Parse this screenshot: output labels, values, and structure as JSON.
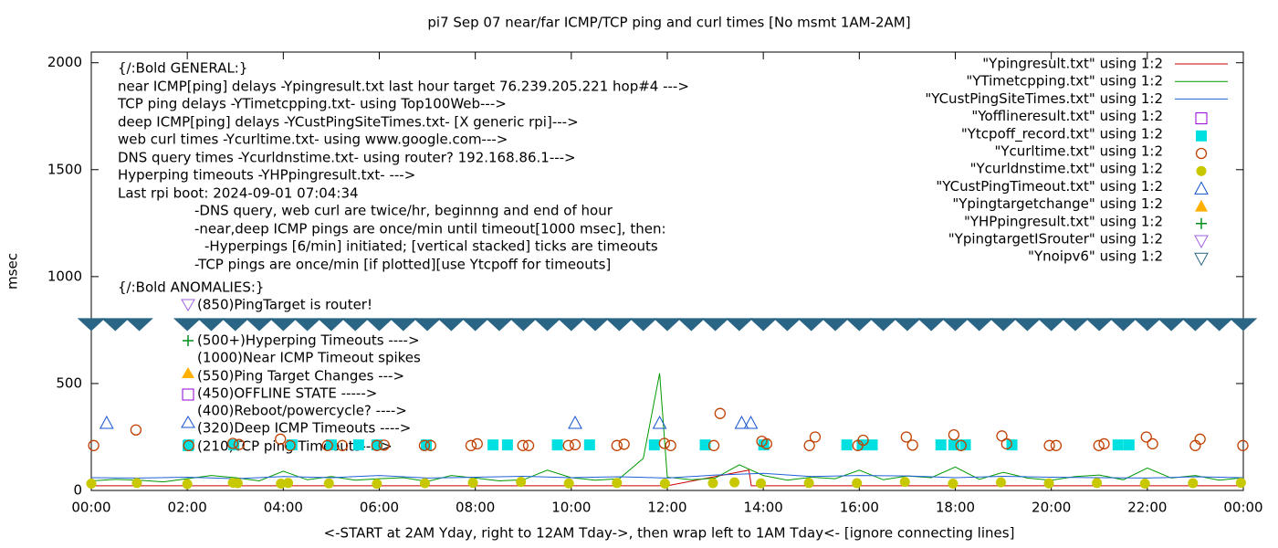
{
  "chart_data": {
    "type": "scatter",
    "title": "pi7 Sep 07  near/far ICMP/TCP ping and curl times [No msmt 1AM-2AM]",
    "xlabel": "<-START at 2AM Yday, right to 12AM Tday->, then wrap left to 1AM Tday<- [ignore connecting lines]",
    "ylabel": "msec",
    "xlim": [
      0,
      24
    ],
    "xticks": [
      {
        "value": 0,
        "label": "00:00"
      },
      {
        "value": 2,
        "label": "02:00"
      },
      {
        "value": 4,
        "label": "04:00"
      },
      {
        "value": 6,
        "label": "06:00"
      },
      {
        "value": 8,
        "label": "08:00"
      },
      {
        "value": 10,
        "label": "10:00"
      },
      {
        "value": 12,
        "label": "12:00"
      },
      {
        "value": 14,
        "label": "14:00"
      },
      {
        "value": 16,
        "label": "16:00"
      },
      {
        "value": 18,
        "label": "18:00"
      },
      {
        "value": 20,
        "label": "20:00"
      },
      {
        "value": 22,
        "label": "22:00"
      },
      {
        "value": 24,
        "label": "00:00"
      }
    ],
    "ylim": [
      0,
      2050
    ],
    "yticks": [
      0,
      500,
      1000,
      1500,
      2000
    ],
    "annotations": [
      "{/:Bold GENERAL:}",
      "near ICMP[ping] delays -Ypingresult.txt last hour target 76.239.205.221 hop#4 --->",
      "TCP ping delays -YTimetcpping.txt- using Top100Web--->",
      "deep ICMP[ping] delays -YCustPingSiteTimes.txt- [X generic rpi]--->",
      "web curl times -Ycurltime.txt- using www.google.com--->",
      "DNS query times -Ycurldnstime.txt- using router? 192.168.86.1--->",
      "Hyperping timeouts -YHPpingresult.txt- --->",
      "Last rpi boot: 2024-09-01 07:04:34",
      "-DNS query, web curl are twice/hr, beginnng and end of hour",
      "-near,deep ICMP pings are once/min until timeout[1000 msec], then:",
      "-Hyperpings [6/min] initiated; [vertical stacked] ticks are timeouts",
      "-TCP pings are once/min [if plotted][use Ytcpoff for timeouts]",
      "{/:Bold ANOMALIES:}",
      "(850)PingTarget is router!",
      "(500+)Hyperping Timeouts ---->",
      "(1000)Near ICMP Timeout spikes",
      "(550)Ping Target Changes --->",
      "(450)OFFLINE STATE ----->",
      "(400)Reboot/powercycle? ---->",
      "(320)Deep ICMP Timeouts ---->",
      "(210)TCP ping Timeouts---->"
    ],
    "series": [
      {
        "name": "\"Ypingresult.txt\" using 1:2",
        "color": "#cc0000",
        "marker": "line",
        "x": [
          0,
          6,
          12,
          13.7,
          13.75,
          18,
          24
        ],
        "values": [
          22,
          22,
          22,
          95,
          22,
          22,
          22
        ]
      },
      {
        "name": "\"YTimetcpping.txt\" using 1:2",
        "color": "#009900",
        "marker": "line",
        "x": [
          0,
          0.5,
          1,
          1.5,
          2,
          2.5,
          3,
          3.5,
          4,
          4.5,
          5,
          5.5,
          6,
          6.5,
          7,
          7.5,
          8,
          8.5,
          9,
          9.5,
          10,
          10.5,
          11,
          11.5,
          11.84,
          12,
          12.5,
          13,
          13.5,
          14,
          14.5,
          15,
          15.5,
          16,
          16.5,
          17,
          17.5,
          18,
          18.5,
          19,
          19.5,
          20,
          20.5,
          21,
          21.5,
          22,
          22.5,
          23,
          23.5,
          24
        ],
        "values": [
          45,
          52,
          48,
          40,
          55,
          70,
          60,
          45,
          90,
          50,
          65,
          48,
          55,
          60,
          42,
          70,
          58,
          45,
          50,
          95,
          60,
          48,
          55,
          150,
          548,
          62,
          50,
          58,
          120,
          70,
          48,
          62,
          55,
          95,
          50,
          68,
          60,
          110,
          52,
          85,
          58,
          48,
          65,
          72,
          50,
          105,
          58,
          70,
          48,
          60
        ]
      },
      {
        "name": "\"YCustPingSiteTimes.txt\" using 1:2",
        "color": "#2060d8",
        "marker": "line",
        "x": [
          0,
          1,
          2,
          3,
          4,
          5,
          6,
          7,
          8,
          9,
          10,
          11,
          12,
          13,
          14,
          15,
          16,
          17,
          18,
          19,
          20,
          21,
          22,
          23,
          24
        ],
        "values": [
          60,
          58,
          62,
          55,
          65,
          60,
          70,
          58,
          62,
          66,
          60,
          64,
          58,
          72,
          80,
          65,
          70,
          68,
          60,
          66,
          62,
          60,
          58,
          64,
          60
        ]
      },
      {
        "name": "\"Yofflineresult.txt\" using 1:2",
        "color": "#9400d3",
        "marker": "square-open",
        "x": [],
        "values": []
      },
      {
        "name": "\"Ytcpoff_record.txt\" using 1:2",
        "color": "#00e0e0",
        "marker": "square",
        "x": [
          2.03,
          2.97,
          4.18,
          5.0,
          5.57,
          5.95,
          6.98,
          8.37,
          8.67,
          9.71,
          10.38,
          11.73,
          12.79,
          14.01,
          15.74,
          16.06,
          16.27,
          17.7,
          17.97,
          18.21,
          19.18,
          21.39,
          21.62
        ],
        "values": [
          213,
          213,
          213,
          213,
          213,
          213,
          213,
          213,
          213,
          213,
          213,
          213,
          213,
          213,
          213,
          213,
          213,
          213,
          213,
          213,
          213,
          213,
          213
        ]
      },
      {
        "name": "\"Ycurltime.txt\" using 1:2",
        "color": "#c04000",
        "marker": "circle-open",
        "x": [
          0.05,
          0.93,
          2.03,
          2.95,
          3.08,
          3.94,
          4.14,
          4.92,
          5.23,
          5.95,
          6.1,
          6.94,
          7.07,
          7.91,
          8.04,
          8.99,
          9.11,
          9.94,
          10.08,
          10.95,
          11.1,
          11.94,
          12.07,
          12.97,
          13.1,
          13.97,
          14.07,
          14.96,
          15.08,
          15.97,
          16.08,
          16.98,
          17.11,
          17.97,
          18.12,
          18.97,
          19.07,
          19.96,
          20.1,
          20.99,
          21.1,
          21.98,
          22.11,
          23.0,
          23.1,
          23.99
        ],
        "values": [
          210,
          283,
          210,
          220,
          215,
          240,
          210,
          210,
          210,
          210,
          212,
          210,
          210,
          210,
          218,
          210,
          210,
          210,
          214,
          210,
          216,
          220,
          210,
          210,
          360,
          230,
          218,
          210,
          250,
          210,
          235,
          250,
          212,
          260,
          210,
          255,
          218,
          210,
          210,
          210,
          218,
          250,
          218,
          210,
          240,
          210
        ]
      },
      {
        "name": "\"Ycurldnstime.txt\" using 1:2",
        "color": "#c8c800",
        "marker": "circle",
        "x": [
          0,
          0.95,
          2.0,
          2.95,
          3.05,
          3.95,
          4.1,
          4.95,
          5.95,
          6.95,
          7.95,
          8.95,
          9.95,
          10.95,
          11.95,
          12.95,
          13.4,
          13.95,
          14.95,
          15.95,
          16.95,
          17.95,
          18.95,
          19.95,
          20.95,
          21.95,
          22.95,
          23.95
        ],
        "values": [
          32,
          35,
          30,
          36,
          34,
          32,
          35,
          33,
          31,
          34,
          36,
          40,
          33,
          35,
          32,
          34,
          38,
          33,
          35,
          34,
          40,
          32,
          38,
          33,
          35,
          32,
          34,
          36
        ]
      },
      {
        "name": "\"YCustPingTimeout.txt\" using 1:2",
        "color": "#1050d0",
        "marker": "triangle-open",
        "x": [
          0.32,
          10.08,
          11.84,
          13.55,
          13.74
        ],
        "values": [
          316,
          316,
          316,
          316,
          316
        ]
      },
      {
        "name": "\"Ypingtargetchange\" using 1:2",
        "color": "#ffb000",
        "marker": "triangle",
        "x": [],
        "values": []
      },
      {
        "name": "\"YHPpingresult.txt\" using 1:2",
        "color": "#009020",
        "marker": "plus",
        "x": [],
        "values": []
      },
      {
        "name": "\"YpingtargetISrouter\" using 1:2",
        "color": "#a060e0",
        "marker": "triangle-down-open",
        "x": [],
        "values": []
      },
      {
        "name": "\"Ynoipv6\" using 1:2",
        "color": "#2a6585",
        "marker": "triangle-down",
        "x": [
          0,
          0.5,
          1.0,
          2.0,
          2.5,
          3.0,
          3.5,
          4.0,
          4.5,
          5.0,
          5.5,
          6.0,
          6.5,
          7.0,
          7.5,
          8.0,
          8.5,
          9.0,
          9.5,
          10.0,
          10.5,
          11.0,
          11.5,
          12.0,
          12.5,
          13.0,
          13.5,
          14.0,
          14.5,
          15.0,
          15.5,
          16.0,
          16.5,
          17.0,
          17.5,
          18.0,
          18.5,
          19.0,
          19.5,
          20.0,
          20.5,
          21.0,
          21.5,
          22.0,
          22.5,
          23.0,
          23.5,
          24.0
        ],
        "values": [
          778,
          778,
          778,
          778,
          778,
          778,
          778,
          778,
          778,
          778,
          778,
          778,
          778,
          778,
          778,
          778,
          778,
          778,
          778,
          778,
          778,
          778,
          778,
          778,
          778,
          778,
          778,
          778,
          778,
          778,
          778,
          778,
          778,
          778,
          778,
          778,
          778,
          778,
          778,
          778,
          778,
          778,
          778,
          778,
          778,
          778,
          778,
          778
        ]
      }
    ]
  }
}
